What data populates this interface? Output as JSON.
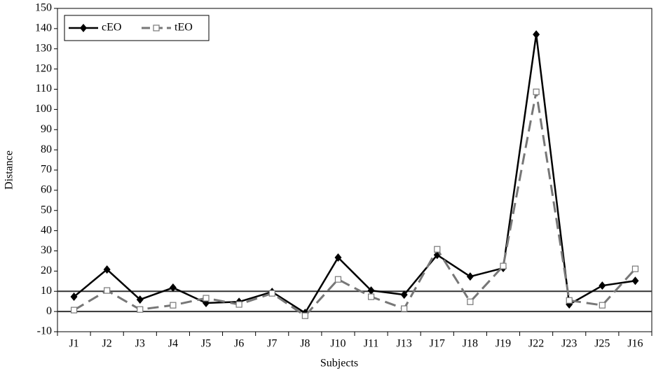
{
  "chart_data": {
    "type": "line",
    "x_label": "Subjects",
    "y_label": "Distance",
    "categories": [
      "J1",
      "J2",
      "J3",
      "J4",
      "J5",
      "J6",
      "J7",
      "J8",
      "J10",
      "J11",
      "J13",
      "J17",
      "J18",
      "J19",
      "J22",
      "J23",
      "J25",
      "J16"
    ],
    "series": [
      {
        "name": "cEO",
        "color": "#000000",
        "dash": false,
        "marker": "diamond",
        "values": [
          7.3,
          20.8,
          5.9,
          11.8,
          4.2,
          4.8,
          9.7,
          -0.7,
          26.7,
          10.4,
          8.3,
          28,
          17.3,
          21.5,
          137.1,
          3.5,
          12.8,
          15.2
        ]
      },
      {
        "name": "tEO",
        "color": "#777777",
        "dash": true,
        "marker": "square",
        "values": [
          0.7,
          10.4,
          1,
          3.1,
          6.6,
          3.5,
          9,
          -2.1,
          15.9,
          7.3,
          1.4,
          30.8,
          4.8,
          22.5,
          108.7,
          5.5,
          3.1,
          21.1
        ]
      }
    ],
    "ylim": [
      -10,
      150
    ],
    "yticks": [
      -10,
      0,
      10,
      20,
      30,
      40,
      50,
      60,
      70,
      80,
      90,
      100,
      110,
      120,
      130,
      140,
      150
    ],
    "reference_lines": [
      0,
      10
    ],
    "legend": "top-left"
  }
}
